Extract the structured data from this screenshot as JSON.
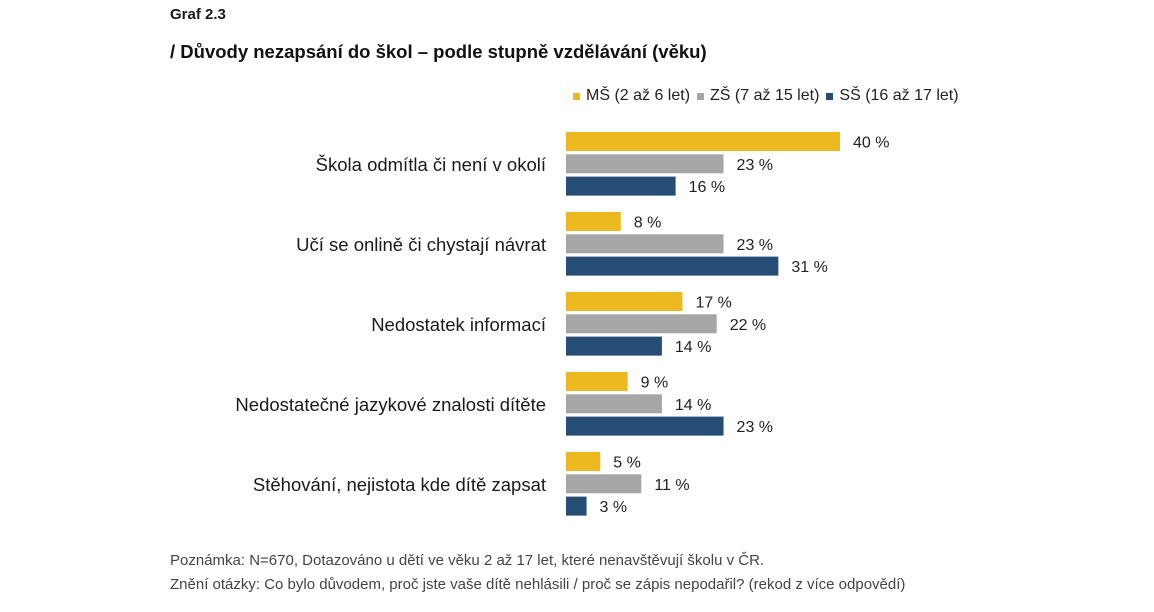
{
  "kicker": "Graf 2.3",
  "chart_data": {
    "type": "bar",
    "orientation": "horizontal",
    "title": "/ Důvody nezapsání do škol – podle stupně vzdělávání (věku)",
    "categories": [
      "Škola odmítla či není v okolí",
      "Učí se onlině či chystají návrat",
      "Nedostatek informací",
      "Nedostatečné jazykové znalosti dítěte",
      "Stěhování, nejistota kde dítě zapsat"
    ],
    "series": [
      {
        "name": "MŠ (2 až 6 let)",
        "color": "#EDB921",
        "values": [
          40,
          8,
          17,
          9,
          5
        ]
      },
      {
        "name": "ZŠ (7 až 15 let)",
        "color": "#A6A6A6",
        "values": [
          23,
          23,
          22,
          14,
          11
        ]
      },
      {
        "name": "SŠ (16 až 17 let)",
        "color": "#264D73",
        "values": [
          16,
          31,
          14,
          23,
          3
        ]
      }
    ],
    "value_suffix": " %",
    "legend_position": "top-right",
    "grid": false
  },
  "notes": {
    "line1": "Poznámka: N=670, Dotazováno u dětí ve věku 2 až 17 let, které nenavštěvují školu v ČR.",
    "line2": "Znění otázky: Co bylo důvodem, proč jste vaše dítě nehlásili / proč se zápis nepodařil? (rekod z více odpovědí)"
  }
}
